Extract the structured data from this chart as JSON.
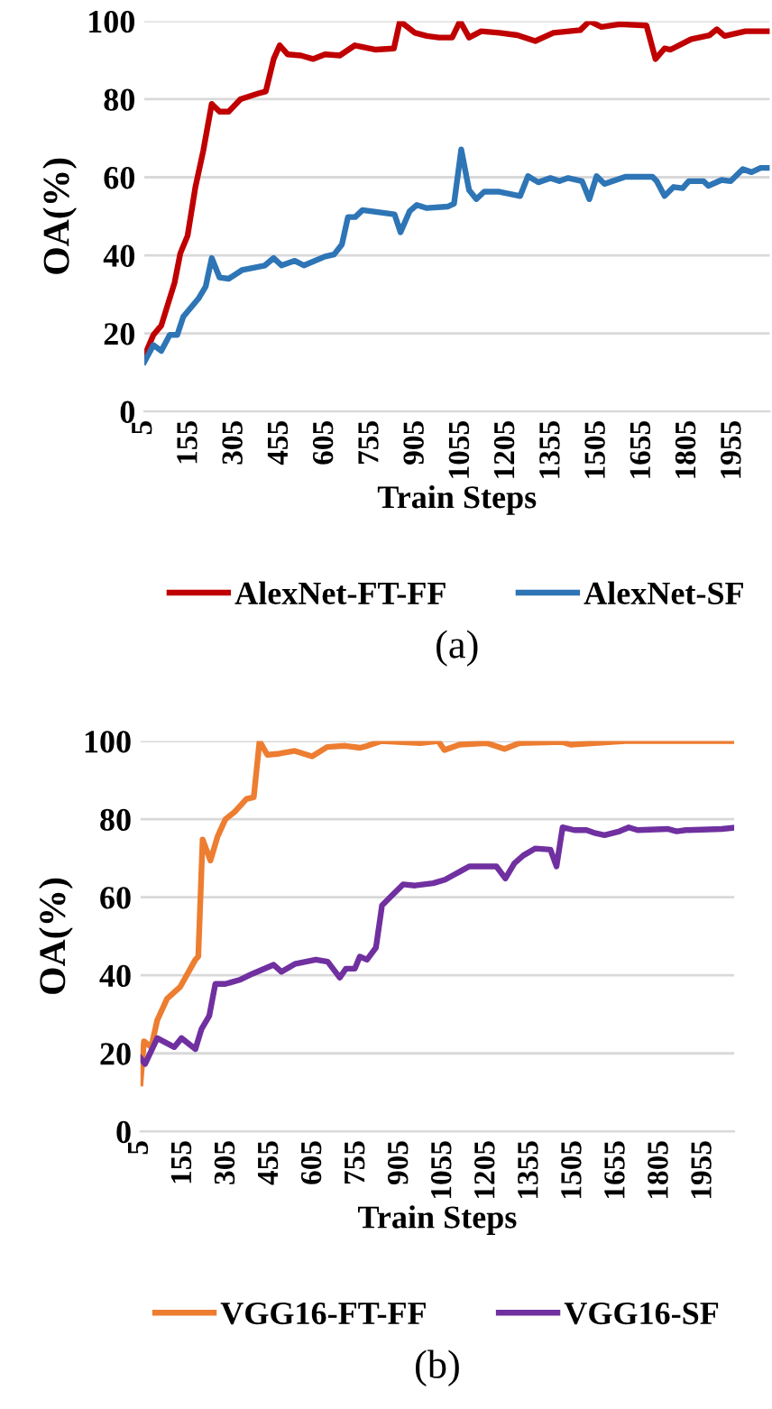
{
  "chart_data": [
    {
      "type": "line",
      "xlabel": "Train Steps",
      "ylabel": "OA(%)",
      "annotations": [
        "(a)"
      ],
      "xlim": [
        5,
        2075
      ],
      "xticks": [
        5,
        155,
        305,
        455,
        605,
        755,
        905,
        1055,
        1205,
        1355,
        1505,
        1655,
        1805,
        1955
      ],
      "ylim": [
        0,
        100
      ],
      "yticks": [
        0,
        20,
        40,
        60,
        80,
        100
      ],
      "grid": "y",
      "legend": "bottom",
      "marker": "none",
      "line_style": "solid",
      "series": [
        {
          "name": "AlexNet-FT-FF",
          "color": "#c00000",
          "x": [
            5,
            35,
            61,
            105,
            124,
            148,
            174,
            200,
            228,
            254,
            284,
            323,
            383,
            407,
            433,
            453,
            479,
            523,
            563,
            603,
            652,
            702,
            771,
            831,
            851,
            901,
            940,
            980,
            1024,
            1050,
            1080,
            1120,
            1180,
            1240,
            1299,
            1359,
            1448,
            1478,
            1518,
            1578,
            1667,
            1697,
            1727,
            1747,
            1816,
            1876,
            1900,
            1926,
            1995,
            2075
          ],
          "values": [
            14.2,
            19.6,
            22,
            33,
            40.5,
            45,
            57.5,
            66.8,
            78.8,
            76.8,
            76.8,
            80,
            81.5,
            82,
            90.3,
            93.8,
            91.5,
            91.2,
            90.3,
            91.5,
            91.2,
            93.8,
            92.7,
            93,
            100,
            97,
            96.2,
            95.8,
            95.8,
            100,
            95.8,
            97.4,
            97,
            96.4,
            94.9,
            97,
            97.7,
            100,
            98.5,
            99.2,
            98.9,
            90.3,
            93,
            92.7,
            95.4,
            96.4,
            97.9,
            96.2,
            97.4,
            97.4
          ]
        },
        {
          "name": "AlexNet-SF",
          "color": "#2e75b6",
          "x": [
            5,
            35,
            61,
            89,
            114,
            134,
            184,
            208,
            228,
            254,
            284,
            328,
            404,
            433,
            459,
            503,
            533,
            603,
            633,
            659,
            679,
            703,
            727,
            783,
            833,
            853,
            883,
            907,
            940,
            1010,
            1030,
            1054,
            1080,
            1104,
            1130,
            1180,
            1249,
            1275,
            1309,
            1349,
            1379,
            1408,
            1454,
            1478,
            1502,
            1528,
            1597,
            1687,
            1701,
            1727,
            1757,
            1787,
            1807,
            1856,
            1872,
            1916,
            1946,
            1986,
            2015,
            2045,
            2075
          ],
          "values": [
            12.7,
            17,
            15.5,
            19.6,
            19.6,
            24.3,
            28.9,
            32,
            39.3,
            34.3,
            34,
            36.2,
            37.4,
            39.3,
            37.4,
            38.6,
            37.4,
            39.7,
            40.2,
            42.8,
            49.8,
            49.8,
            51.6,
            51,
            50.5,
            45.9,
            51.3,
            52.9,
            52.1,
            52.5,
            53.2,
            67.1,
            56.7,
            54.4,
            56.3,
            56.3,
            55.2,
            60.3,
            58.7,
            59.8,
            59,
            59.8,
            59,
            54.4,
            60.3,
            58.3,
            60.1,
            60.1,
            59,
            55.2,
            57.5,
            57.2,
            59,
            59,
            57.8,
            59.3,
            59,
            62.1,
            61.3,
            62.4,
            62.4
          ]
        }
      ]
    },
    {
      "type": "line",
      "xlabel": "Train Steps",
      "ylabel": "OA(%)",
      "annotations": [
        "(b)"
      ],
      "xlim": [
        5,
        2060
      ],
      "xticks": [
        5,
        155,
        305,
        455,
        605,
        755,
        905,
        1055,
        1205,
        1355,
        1505,
        1655,
        1805,
        1955
      ],
      "ylim": [
        0,
        100
      ],
      "yticks": [
        0,
        20,
        40,
        60,
        80,
        100
      ],
      "grid": "y",
      "legend": "bottom",
      "marker": "none",
      "line_style": "solid",
      "series": [
        {
          "name": "VGG16-FT-FF",
          "color": "#ed7d31",
          "x": [
            5,
            17,
            42,
            63,
            97,
            142,
            195,
            205,
            220,
            247,
            272,
            299,
            330,
            372,
            397,
            417,
            444,
            486,
            539,
            599,
            651,
            713,
            765,
            790,
            838,
            974,
            1036,
            1057,
            1109,
            1203,
            1265,
            1317,
            1463,
            1494,
            1682,
            2060
          ],
          "values": [
            12.3,
            23.1,
            21.6,
            28.5,
            34,
            37,
            44,
            44.8,
            74.8,
            69.4,
            75.6,
            80,
            81.8,
            85.2,
            85.6,
            100,
            96.5,
            96.8,
            97.5,
            96.1,
            98.5,
            98.8,
            98.3,
            98.8,
            100,
            99.5,
            100,
            97.7,
            99.1,
            99.5,
            98,
            99.5,
            99.8,
            99.1,
            100,
            100
          ]
        },
        {
          "name": "VGG16-SF",
          "color": "#7030a0",
          "x": [
            5,
            21,
            63,
            122,
            147,
            195,
            216,
            243,
            264,
            299,
            351,
            393,
            466,
            493,
            539,
            612,
            653,
            695,
            716,
            747,
            764,
            789,
            820,
            841,
            872,
            914,
            955,
            1018,
            1059,
            1143,
            1237,
            1268,
            1299,
            1330,
            1372,
            1424,
            1445,
            1466,
            1507,
            1549,
            1580,
            1611,
            1663,
            1695,
            1726,
            1829,
            1861,
            1892,
            2017,
            2060
          ],
          "values": [
            18.8,
            17.3,
            23.9,
            21.6,
            23.9,
            21.1,
            26.2,
            29.6,
            37.8,
            37.8,
            38.9,
            40.4,
            42.7,
            40.9,
            42.9,
            44,
            43.5,
            39.4,
            41.7,
            41.7,
            44.8,
            44,
            47.1,
            57.9,
            60.2,
            63.3,
            63,
            63.6,
            64.5,
            67.9,
            67.9,
            64.8,
            68.7,
            70.7,
            72.5,
            72.2,
            67.9,
            77.9,
            77.2,
            77.2,
            76.4,
            75.9,
            76.9,
            77.9,
            77.2,
            77.5,
            76.9,
            77.2,
            77.5,
            77.8
          ]
        }
      ]
    }
  ]
}
